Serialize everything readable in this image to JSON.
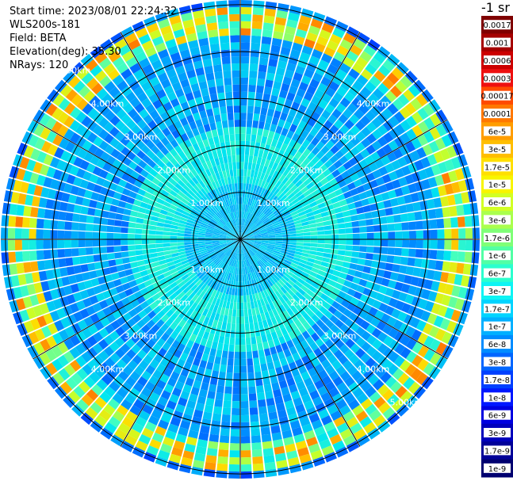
{
  "info": {
    "start_time": "Start time: 2023/08/01 22:24:32",
    "instrument": "WLS200s-181",
    "field": "Field: BETA",
    "elevation": "Elevation(deg): 35.30",
    "nrays": "NRays: 120"
  },
  "colorbar": {
    "unit_label": "-1 sr",
    "ticks": [
      "0.0017",
      "0.001",
      "0.0006",
      "0.0003",
      "0.00017",
      "0.0001",
      "6e-5",
      "3e-5",
      "1.7e-5",
      "1e-5",
      "6e-6",
      "3e-6",
      "1.7e-6",
      "1e-6",
      "6e-7",
      "3e-7",
      "1.7e-7",
      "1e-7",
      "6e-8",
      "3e-8",
      "1.7e-8",
      "1e-8",
      "6e-9",
      "3e-9",
      "1.7e-9",
      "1e-9"
    ],
    "colors": [
      "#7f0000",
      "#a50000",
      "#cc0000",
      "#ee1010",
      "#ff4a00",
      "#ff7800",
      "#ff9d00",
      "#ffbe00",
      "#ffdf00",
      "#f8f500",
      "#d2ff25",
      "#aaff4d",
      "#7fff77",
      "#52ffa5",
      "#2bffce",
      "#0ef4f4",
      "#00d4ff",
      "#00b0ff",
      "#008cff",
      "#0066ff",
      "#0040ff",
      "#0018ff",
      "#0000e0",
      "#0000bc",
      "#000098",
      "#000070"
    ]
  },
  "chart_data": {
    "type": "heatmap",
    "projection": "polar-ppi",
    "nrays": 120,
    "range_rings_km": [
      1,
      2,
      3,
      4,
      5
    ],
    "ring_labels": [
      "1.00km",
      "2.00km",
      "3.00km",
      "4.00km",
      "5.00km"
    ],
    "max_range_km": 5.1,
    "spoke_angles_deg": [
      0,
      30,
      60,
      90,
      120,
      150,
      180,
      210,
      240,
      270,
      300,
      330
    ],
    "beta_background": "1e-7 to 1e-6 sr-1 (cyan-blue) across most of the scan",
    "beta_ring_feature": {
      "range_km": [
        4.4,
        4.9
      ],
      "value_range": "1e-6 to 1e-4 sr-1",
      "description": "enhanced backscatter arc near edge of scan"
    },
    "color_scale": "log"
  }
}
